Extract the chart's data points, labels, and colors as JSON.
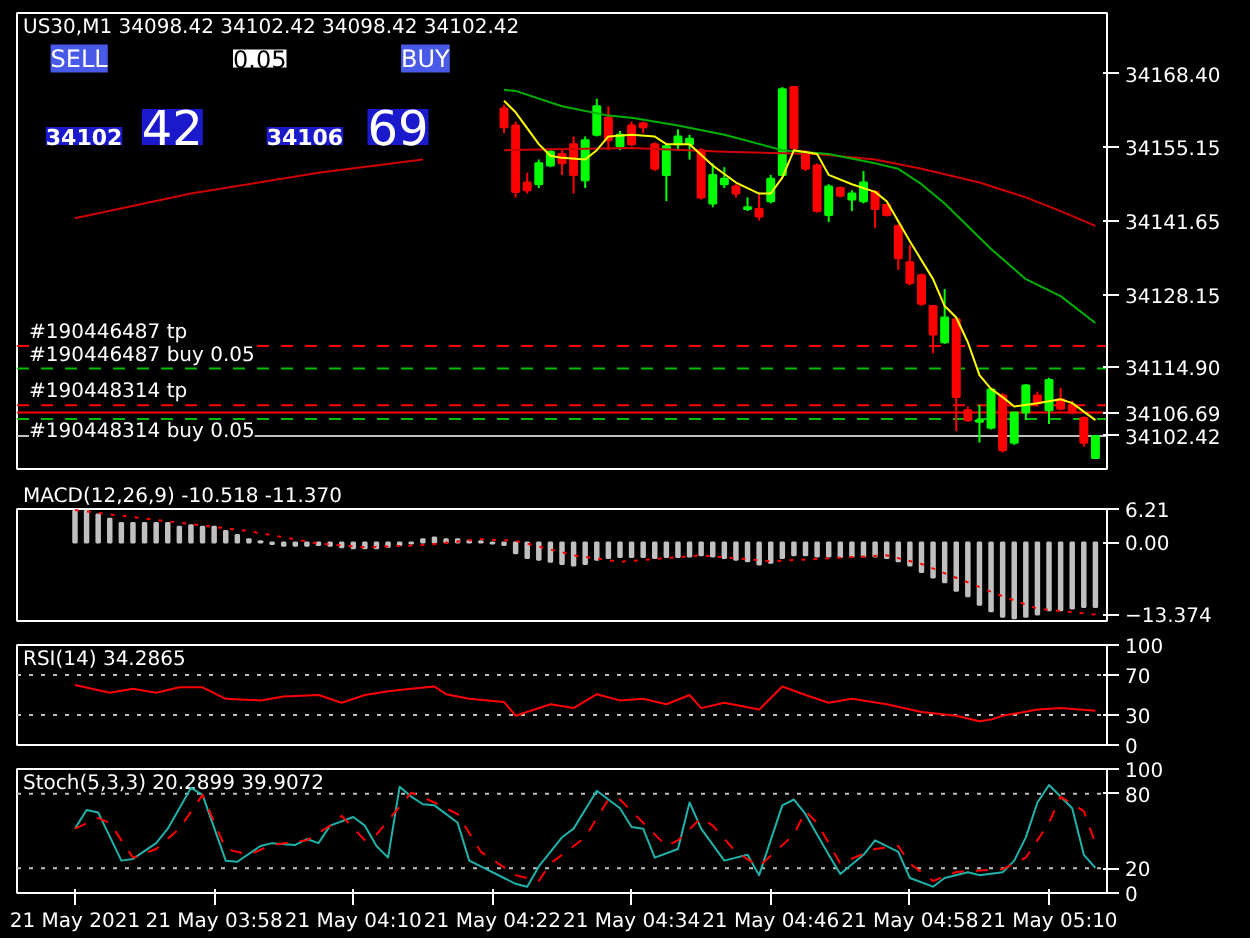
{
  "chart_data": [
    {
      "type": "candlestick",
      "title": "US30,M1 34098.42 34102.42 34098.42 34102.42",
      "tick_labels": "y",
      "xlim": [
        "2021-05-21T03:41",
        "2021-05-21T05:15"
      ],
      "ylim": [
        34096.4,
        34179.5
      ],
      "yticks": [
        {
          "value": 34168.4,
          "label": "34168.40"
        },
        {
          "value": 34155.15,
          "label": "34155.15"
        },
        {
          "value": 34141.65,
          "label": "34141.65"
        },
        {
          "value": 34128.15,
          "label": "34128.15"
        },
        {
          "value": 34114.9,
          "label": "34114.90"
        }
      ],
      "x": [
        "2021-05-21T04:23",
        "2021-05-21T04:24",
        "2021-05-21T04:25",
        "2021-05-21T04:26",
        "2021-05-21T04:27",
        "2021-05-21T04:28",
        "2021-05-21T04:29",
        "2021-05-21T04:30",
        "2021-05-21T04:31",
        "2021-05-21T04:32",
        "2021-05-21T04:33",
        "2021-05-21T04:34",
        "2021-05-21T04:35",
        "2021-05-21T04:36",
        "2021-05-21T04:37",
        "2021-05-21T04:38",
        "2021-05-21T04:39",
        "2021-05-21T04:40",
        "2021-05-21T04:41",
        "2021-05-21T04:42",
        "2021-05-21T04:43",
        "2021-05-21T04:44",
        "2021-05-21T04:45",
        "2021-05-21T04:46",
        "2021-05-21T04:47",
        "2021-05-21T04:48",
        "2021-05-21T04:49",
        "2021-05-21T04:50",
        "2021-05-21T04:51",
        "2021-05-21T04:52",
        "2021-05-21T04:53",
        "2021-05-21T04:54",
        "2021-05-21T04:55",
        "2021-05-21T04:56",
        "2021-05-21T04:57",
        "2021-05-21T04:58",
        "2021-05-21T04:59",
        "2021-05-21T05:00",
        "2021-05-21T05:01",
        "2021-05-21T05:02",
        "2021-05-21T05:03",
        "2021-05-21T05:04",
        "2021-05-21T05:05",
        "2021-05-21T05:06",
        "2021-05-21T05:07",
        "2021-05-21T05:08",
        "2021-05-21T05:09",
        "2021-05-21T05:10",
        "2021-05-21T05:11",
        "2021-05-21T05:12",
        "2021-05-21T05:13",
        "2021-05-21T05:14"
      ],
      "ohlc": [
        [
          34162.1,
          34162.8,
          34157.6,
          34158.7
        ],
        [
          34159.0,
          34159.7,
          34145.9,
          34146.9
        ],
        [
          34148.6,
          34150.4,
          34146.6,
          34147.2
        ],
        [
          34148.3,
          34152.8,
          34147.6,
          34152.1
        ],
        [
          34151.7,
          34154.5,
          34151.4,
          34154.2
        ],
        [
          34153.8,
          34154.5,
          34150.0,
          34152.1
        ],
        [
          34155.6,
          34157.0,
          34146.6,
          34150.0
        ],
        [
          34149.0,
          34157.0,
          34147.6,
          34156.3
        ],
        [
          34157.3,
          34163.9,
          34157.0,
          34162.5
        ],
        [
          34160.4,
          34162.5,
          34154.5,
          34156.3
        ],
        [
          34155.2,
          34158.0,
          34154.5,
          34157.3
        ],
        [
          34159.0,
          34159.7,
          34155.2,
          34155.6
        ],
        [
          34159.4,
          34159.7,
          34157.6,
          34158.7
        ],
        [
          34155.6,
          34155.9,
          34150.7,
          34151.1
        ],
        [
          34150.0,
          34155.6,
          34145.2,
          34155.2
        ],
        [
          34155.6,
          34158.3,
          34154.5,
          34157.0
        ],
        [
          34155.6,
          34157.3,
          34152.8,
          34156.6
        ],
        [
          34154.5,
          34154.9,
          34145.5,
          34145.9
        ],
        [
          34144.8,
          34152.1,
          34144.1,
          34150.0
        ],
        [
          34148.3,
          34151.4,
          34147.6,
          34149.3
        ],
        [
          34147.9,
          34148.3,
          34145.9,
          34146.6
        ],
        [
          34143.8,
          34145.9,
          34143.4,
          34144.1
        ],
        [
          34143.8,
          34146.6,
          34141.7,
          34142.4
        ],
        [
          34145.2,
          34150.0,
          34144.8,
          34149.3
        ],
        [
          34150.0,
          34166.0,
          34150.0,
          34165.6
        ],
        [
          34166.0,
          34166.0,
          34154.5,
          34154.9
        ],
        [
          34154.2,
          34154.5,
          34150.7,
          34151.1
        ],
        [
          34151.7,
          34152.1,
          34143.1,
          34143.4
        ],
        [
          34142.7,
          34148.3,
          34141.4,
          34147.9
        ],
        [
          34147.6,
          34147.9,
          34145.9,
          34146.2
        ],
        [
          34145.5,
          34147.2,
          34143.4,
          34146.6
        ],
        [
          34145.2,
          34150.7,
          34144.8,
          34148.6
        ],
        [
          34146.9,
          34147.2,
          34140.3,
          34143.8
        ],
        [
          34144.5,
          34144.5,
          34142.4,
          34142.7
        ],
        [
          34140.7,
          34141.0,
          34132.7,
          34134.8
        ],
        [
          34134.1,
          34137.2,
          34129.9,
          34130.3
        ],
        [
          34131.7,
          34132.0,
          34126.1,
          34126.5
        ],
        [
          34126.1,
          34126.1,
          34117.5,
          34120.9
        ],
        [
          34119.5,
          34129.2,
          34119.2,
          34124.0
        ],
        [
          34123.7,
          34124.0,
          34103.3,
          34109.5
        ],
        [
          34107.1,
          34107.8,
          34105.0,
          34105.3
        ],
        [
          34105.0,
          34108.1,
          34101.2,
          34105.3
        ],
        [
          34103.9,
          34111.2,
          34103.6,
          34110.9
        ],
        [
          34109.8,
          34110.2,
          34099.4,
          34099.8
        ],
        [
          34101.2,
          34106.7,
          34100.8,
          34106.7
        ],
        [
          34106.7,
          34111.9,
          34105.3,
          34111.6
        ],
        [
          34109.8,
          34110.5,
          34107.8,
          34108.4
        ],
        [
          34107.1,
          34113.0,
          34104.6,
          34112.6
        ],
        [
          34109.1,
          34111.2,
          34107.1,
          34107.4
        ],
        [
          34108.1,
          34108.8,
          34106.4,
          34106.7
        ],
        [
          34105.7,
          34106.0,
          34100.5,
          34101.2
        ],
        [
          34098.42,
          34102.42,
          34098.42,
          34102.42
        ]
      ],
      "colors": [
        "#ff0000",
        "#ff0000",
        "#ff0000",
        "#00ff00",
        "#00ff00",
        "#ff0000",
        "#ff0000",
        "#00ff00",
        "#00ff00",
        "#ff0000",
        "#00ff00",
        "#ff0000",
        "#ff0000",
        "#ff0000",
        "#00ff00",
        "#00ff00",
        "#00ff00",
        "#ff0000",
        "#00ff00",
        "#00ff00",
        "#ff0000",
        "#00ff00",
        "#ff0000",
        "#00ff00",
        "#00ff00",
        "#ff0000",
        "#ff0000",
        "#ff0000",
        "#00ff00",
        "#ff0000",
        "#00ff00",
        "#00ff00",
        "#ff0000",
        "#ff0000",
        "#ff0000",
        "#ff0000",
        "#ff0000",
        "#ff0000",
        "#00ff00",
        "#ff0000",
        "#ff0000",
        "#00ff00",
        "#00ff00",
        "#ff0000",
        "#00ff00",
        "#00ff00",
        "#ff0000",
        "#00ff00",
        "#ff0000",
        "#ff0000",
        "#ff0000",
        "#00ff00"
      ],
      "series": [
        {
          "type": "line",
          "color": "#d00000",
          "x": [
            "2021-05-21T03:46",
            "2021-05-21T03:56",
            "2021-05-21T04:07",
            "2021-05-21T04:16",
            "2021-05-21T04:19",
            "2021-05-21T04:23",
            "2021-05-21T04:34",
            "2021-05-21T04:42",
            "2021-05-21T04:50",
            "2021-05-21T04:55",
            "2021-05-21T04:59",
            "2021-05-21T05:04",
            "2021-05-21T05:08",
            "2021-05-21T05:11",
            "2021-05-21T05:14"
          ],
          "values": [
            34142.1,
            34146.6,
            34150.4,
            34152.8,
            null,
            34154.5,
            34154.9,
            34154.2,
            34153.8,
            34152.8,
            34151.1,
            34148.6,
            34145.9,
            34143.4,
            34140.7
          ]
        },
        {
          "type": "line",
          "color": "#00b000",
          "x": [
            "2021-05-21T04:23",
            "2021-05-21T04:24",
            "2021-05-21T04:28",
            "2021-05-21T04:32",
            "2021-05-21T04:34",
            "2021-05-21T04:38",
            "2021-05-21T04:42",
            "2021-05-21T04:47",
            "2021-05-21T04:51",
            "2021-05-21T04:55",
            "2021-05-21T04:57",
            "2021-05-21T04:59",
            "2021-05-21T05:01",
            "2021-05-21T05:05",
            "2021-05-21T05:08",
            "2021-05-21T05:11",
            "2021-05-21T05:14"
          ],
          "values": [
            34165.5,
            34165.3,
            34162.5,
            34160.8,
            34160.4,
            34159.0,
            34157.3,
            34154.5,
            34153.8,
            34152.1,
            34151.1,
            34148.3,
            34144.8,
            34136.5,
            34131.0,
            34127.9,
            34123.0
          ]
        },
        {
          "type": "line",
          "color": "#ffff00",
          "x": [
            "2021-05-21T04:23",
            "2021-05-21T04:24",
            "2021-05-21T04:26",
            "2021-05-21T04:27",
            "2021-05-21T04:28",
            "2021-05-21T04:30",
            "2021-05-21T04:31",
            "2021-05-21T04:32",
            "2021-05-21T04:34",
            "2021-05-21T04:36",
            "2021-05-21T04:37",
            "2021-05-21T04:39",
            "2021-05-21T04:41",
            "2021-05-21T04:43",
            "2021-05-21T04:45",
            "2021-05-21T04:46",
            "2021-05-21T04:47",
            "2021-05-21T04:48",
            "2021-05-21T04:50",
            "2021-05-21T04:51",
            "2021-05-21T04:53",
            "2021-05-21T04:55",
            "2021-05-21T04:56",
            "2021-05-21T04:58",
            "2021-05-21T05:00",
            "2021-05-21T05:01",
            "2021-05-21T05:02",
            "2021-05-21T05:03",
            "2021-05-21T05:04",
            "2021-05-21T05:05",
            "2021-05-21T05:06",
            "2021-05-21T05:07",
            "2021-05-21T05:09",
            "2021-05-21T05:11",
            "2021-05-21T05:12",
            "2021-05-21T05:14"
          ],
          "values": [
            34163.5,
            34161.4,
            34155.6,
            34153.5,
            34153.1,
            34152.8,
            34154.5,
            34157.0,
            34157.3,
            34157.0,
            34155.6,
            34155.6,
            34151.7,
            34148.6,
            34146.6,
            34146.6,
            34149.5,
            34154.5,
            34153.8,
            34150.0,
            34148.3,
            34146.9,
            34145.2,
            34137.9,
            34131.0,
            34126.1,
            34124.0,
            34119.5,
            34113.5,
            34111.0,
            34109.5,
            34107.8,
            34108.4,
            34109.1,
            34108.4,
            34105.3
          ]
        }
      ],
      "ref_lines": [
        {
          "axis": "y",
          "value": 34118.8,
          "label": "#190446487 tp",
          "color": "#ff0000",
          "line_style": "dashed"
        },
        {
          "axis": "y",
          "value": 34114.7,
          "label": "#190446487 buy 0.05",
          "color": "#00c000",
          "line_style": "dashed"
        },
        {
          "axis": "y",
          "value": 34108.0,
          "label": "#190448314 tp",
          "color": "#ff0000",
          "line_style": "dashed"
        },
        {
          "axis": "y",
          "value": 34105.5,
          "label": "#190448314 buy 0.05",
          "color": "#00c000",
          "line_style": "dashed"
        },
        {
          "axis": "y",
          "value": 34106.69,
          "label": "34106.69",
          "color": "#ff0000",
          "line_style": "solid"
        },
        {
          "axis": "y",
          "value": 34102.42,
          "label": "34102.42",
          "color": "#c0c0c0",
          "line_style": "solid"
        }
      ],
      "annotations": [
        "SELL",
        "0.05",
        "BUY",
        "34102",
        "42",
        "34106",
        "69"
      ]
    },
    {
      "type": "bar",
      "title": "MACD(12,26,9) -10.518 -11.370",
      "tick_labels": "y",
      "color": "#c0c0c0",
      "xlim": [
        "2021-05-21T03:41",
        "2021-05-21T05:15"
      ],
      "ylim": [
        -14.6,
        6.21
      ],
      "yticks": [
        6.21,
        {
          "value": 0,
          "label": "0.00"
        },
        -13.374
      ],
      "x": [
        "2021-05-21T03:46",
        "2021-05-21T03:47",
        "2021-05-21T03:48",
        "2021-05-21T03:49",
        "2021-05-21T03:50",
        "2021-05-21T03:51",
        "2021-05-21T03:52",
        "2021-05-21T03:53",
        "2021-05-21T03:54",
        "2021-05-21T03:55",
        "2021-05-21T03:56",
        "2021-05-21T03:57",
        "2021-05-21T03:58",
        "2021-05-21T03:59",
        "2021-05-21T04:00",
        "2021-05-21T04:01",
        "2021-05-21T04:02",
        "2021-05-21T04:03",
        "2021-05-21T04:04",
        "2021-05-21T04:05",
        "2021-05-21T04:06",
        "2021-05-21T04:07",
        "2021-05-21T04:08",
        "2021-05-21T04:09",
        "2021-05-21T04:10",
        "2021-05-21T04:11",
        "2021-05-21T04:12",
        "2021-05-21T04:13",
        "2021-05-21T04:14",
        "2021-05-21T04:15",
        "2021-05-21T04:16",
        "2021-05-21T04:17",
        "2021-05-21T04:18",
        "2021-05-21T04:19",
        "2021-05-21T04:20",
        "2021-05-21T04:21",
        "2021-05-21T04:22",
        "2021-05-21T04:23",
        "2021-05-21T04:24",
        "2021-05-21T04:25",
        "2021-05-21T04:26",
        "2021-05-21T04:27",
        "2021-05-21T04:28",
        "2021-05-21T04:29",
        "2021-05-21T04:30",
        "2021-05-21T04:31",
        "2021-05-21T04:32",
        "2021-05-21T04:33",
        "2021-05-21T04:34",
        "2021-05-21T04:35",
        "2021-05-21T04:36",
        "2021-05-21T04:37",
        "2021-05-21T04:38",
        "2021-05-21T04:39",
        "2021-05-21T04:40",
        "2021-05-21T04:41",
        "2021-05-21T04:42",
        "2021-05-21T04:43",
        "2021-05-21T04:44",
        "2021-05-21T04:45",
        "2021-05-21T04:46",
        "2021-05-21T04:47",
        "2021-05-21T04:48",
        "2021-05-21T04:49",
        "2021-05-21T04:50",
        "2021-05-21T04:51",
        "2021-05-21T04:52",
        "2021-05-21T04:53",
        "2021-05-21T04:54",
        "2021-05-21T04:55",
        "2021-05-21T04:56",
        "2021-05-21T04:57",
        "2021-05-21T04:58",
        "2021-05-21T04:59",
        "2021-05-21T05:00",
        "2021-05-21T05:01",
        "2021-05-21T05:02",
        "2021-05-21T05:03",
        "2021-05-21T05:04",
        "2021-05-21T05:05",
        "2021-05-21T05:06",
        "2021-05-21T05:07",
        "2021-05-21T05:08",
        "2021-05-21T05:09",
        "2021-05-21T05:10",
        "2021-05-21T05:11",
        "2021-05-21T05:12",
        "2021-05-21T05:13",
        "2021-05-21T05:14"
      ],
      "values": [
        5.9,
        5.9,
        5.2,
        4.4,
        3.6,
        3.6,
        3.6,
        3.6,
        3.6,
        2.9,
        3.2,
        2.9,
        2.9,
        2.1,
        1.4,
        0.6,
        0.2,
        -0.3,
        -0.6,
        -0.6,
        -0.6,
        -0.5,
        -0.6,
        -0.9,
        -1.1,
        -1.1,
        -1.1,
        -0.8,
        -0.5,
        -0.2,
        0.6,
        0.9,
        0.6,
        0.6,
        0.3,
        0.2,
        -0.2,
        -0.5,
        -2.0,
        -2.9,
        -3.2,
        -3.6,
        -4.0,
        -4.3,
        -4.0,
        -3.2,
        -2.9,
        -2.7,
        -2.7,
        -2.7,
        -2.9,
        -2.7,
        -2.7,
        -2.6,
        -2.4,
        -2.6,
        -2.9,
        -3.2,
        -3.5,
        -4.1,
        -3.8,
        -2.9,
        -2.4,
        -2.4,
        -2.6,
        -2.6,
        -2.7,
        -2.6,
        -2.6,
        -2.6,
        -2.9,
        -3.5,
        -4.3,
        -5.5,
        -6.5,
        -7.4,
        -9.0,
        -10.0,
        -11.6,
        -12.8,
        -13.8,
        -14.1,
        -13.8,
        -13.4,
        -12.6,
        -12.6,
        -12.3,
        -12.0,
        -12.0
      ],
      "series": [
        {
          "type": "line",
          "color": "#ff0000",
          "line_style": "dotted",
          "x": [
            "2021-05-21T03:46",
            "2021-05-21T04:01",
            "2021-05-21T04:07",
            "2021-05-21T04:11",
            "2021-05-21T04:16",
            "2021-05-21T04:21",
            "2021-05-21T04:24",
            "2021-05-21T04:29",
            "2021-05-21T04:33",
            "2021-05-21T04:40",
            "2021-05-21T04:46",
            "2021-05-21T04:56",
            "2021-05-21T04:59",
            "2021-05-21T05:06",
            "2021-05-21T05:09",
            "2021-05-21T05:14"
          ],
          "values": [
            6.0,
            2.1,
            -0.2,
            -0.9,
            -0.5,
            0.6,
            0.3,
            -2.4,
            -3.6,
            -2.4,
            -3.5,
            -2.4,
            -4.0,
            -10.0,
            -12.3,
            -13.4
          ]
        }
      ]
    },
    {
      "type": "line",
      "title": "RSI(14) 34.2865",
      "tick_labels": "y",
      "xlim": [
        "2021-05-21T03:41",
        "2021-05-21T05:15"
      ],
      "ylim": [
        0,
        100
      ],
      "yticks": [
        100,
        70,
        30,
        0
      ],
      "series": [
        {
          "color": "#ff0000",
          "x": [
            "2021-05-21T03:46",
            "2021-05-21T03:49",
            "2021-05-21T03:51",
            "2021-05-21T03:53",
            "2021-05-21T03:55",
            "2021-05-21T03:57",
            "2021-05-21T03:59",
            "2021-05-21T04:02",
            "2021-05-21T04:04",
            "2021-05-21T04:07",
            "2021-05-21T04:09",
            "2021-05-21T04:11",
            "2021-05-21T04:13",
            "2021-05-21T04:15",
            "2021-05-21T04:17",
            "2021-05-21T04:18",
            "2021-05-21T04:20",
            "2021-05-21T04:23",
            "2021-05-21T04:24",
            "2021-05-21T04:27",
            "2021-05-21T04:29",
            "2021-05-21T04:31",
            "2021-05-21T04:33",
            "2021-05-21T04:35",
            "2021-05-21T04:37",
            "2021-05-21T04:39",
            "2021-05-21T04:40",
            "2021-05-21T04:42",
            "2021-05-21T04:45",
            "2021-05-21T04:47",
            "2021-05-21T04:49",
            "2021-05-21T04:51",
            "2021-05-21T04:53",
            "2021-05-21T04:56",
            "2021-05-21T04:59",
            "2021-05-21T05:02",
            "2021-05-21T05:04",
            "2021-05-21T05:05",
            "2021-05-21T05:06",
            "2021-05-21T05:09",
            "2021-05-21T05:11",
            "2021-05-21T05:14"
          ],
          "values": [
            60,
            52.3,
            56.2,
            52.3,
            57.7,
            57.7,
            46.2,
            44.6,
            48.5,
            50.0,
            42.3,
            50.0,
            53.8,
            56.2,
            58.5,
            50.8,
            46.2,
            43.1,
            29.2,
            40.8,
            36.9,
            50.8,
            44.6,
            46.2,
            40.8,
            50.0,
            36.9,
            42.3,
            35.4,
            58.5,
            50.0,
            42.3,
            46.2,
            40.8,
            33.1,
            29.2,
            23.8,
            25.4,
            29.2,
            35.4,
            36.9,
            34.3
          ]
        }
      ],
      "ref_lines": [
        {
          "axis": "y",
          "value": 70,
          "color": "#c0c0c0",
          "line_style": "dotted"
        },
        {
          "axis": "y",
          "value": 30,
          "color": "#c0c0c0",
          "line_style": "dotted"
        }
      ]
    },
    {
      "type": "line",
      "title": "Stoch(5,3,3) 20.2899 39.9072",
      "xlim": [
        "2021-05-21T03:41",
        "2021-05-21T05:15"
      ],
      "ylim": [
        0,
        100
      ],
      "yticks": [
        100,
        80,
        20,
        0
      ],
      "xticks": [
        {
          "value": "2021-05-21T03:46",
          "label": "21 May 2021"
        },
        {
          "value": "2021-05-21T03:58",
          "label": "21 May 03:58"
        },
        {
          "value": "2021-05-21T04:10",
          "label": "21 May 04:10"
        },
        {
          "value": "2021-05-21T04:22",
          "label": "21 May 04:22"
        },
        {
          "value": "2021-05-21T04:34",
          "label": "21 May 04:34"
        },
        {
          "value": "2021-05-21T04:46",
          "label": "21 May 04:46"
        },
        {
          "value": "2021-05-21T04:58",
          "label": "21 May 04:58"
        },
        {
          "value": "2021-05-21T05:10",
          "label": "21 May 05:10"
        }
      ],
      "series": [
        {
          "color": "#20b2aa",
          "x": [
            "2021-05-21T03:46",
            "2021-05-21T03:47",
            "2021-05-21T03:48",
            "2021-05-21T03:50",
            "2021-05-21T03:51",
            "2021-05-21T03:53",
            "2021-05-21T03:54",
            "2021-05-21T03:56",
            "2021-05-21T03:57",
            "2021-05-21T03:59",
            "2021-05-21T04:00",
            "2021-05-21T04:02",
            "2021-05-21T04:03",
            "2021-05-21T04:05",
            "2021-05-21T04:06",
            "2021-05-21T04:07",
            "2021-05-21T04:08",
            "2021-05-21T04:10",
            "2021-05-21T04:11",
            "2021-05-21T04:12",
            "2021-05-21T04:13",
            "2021-05-21T04:14",
            "2021-05-21T04:15",
            "2021-05-21T04:16",
            "2021-05-21T04:17",
            "2021-05-21T04:19",
            "2021-05-21T04:20",
            "2021-05-21T04:21",
            "2021-05-21T04:23",
            "2021-05-21T04:24",
            "2021-05-21T04:25",
            "2021-05-21T04:26",
            "2021-05-21T04:28",
            "2021-05-21T04:29",
            "2021-05-21T04:31",
            "2021-05-21T04:33",
            "2021-05-21T04:34",
            "2021-05-21T04:35",
            "2021-05-21T04:36",
            "2021-05-21T04:38",
            "2021-05-21T04:39",
            "2021-05-21T04:40",
            "2021-05-21T04:42",
            "2021-05-21T04:44",
            "2021-05-21T04:45",
            "2021-05-21T04:47",
            "2021-05-21T04:48",
            "2021-05-21T04:49",
            "2021-05-21T04:51",
            "2021-05-21T04:52",
            "2021-05-21T04:54",
            "2021-05-21T04:55",
            "2021-05-21T04:57",
            "2021-05-21T04:58",
            "2021-05-21T05:00",
            "2021-05-21T05:01",
            "2021-05-21T05:03",
            "2021-05-21T05:04",
            "2021-05-21T05:06",
            "2021-05-21T05:07",
            "2021-05-21T05:08",
            "2021-05-21T05:09",
            "2021-05-21T05:10",
            "2021-05-21T05:12",
            "2021-05-21T05:13",
            "2021-05-21T05:14"
          ],
          "values": [
            51.9,
            66.9,
            65.0,
            26.1,
            27.5,
            40.2,
            51.9,
            84.7,
            79.1,
            26.1,
            25.2,
            37.9,
            40.2,
            38.8,
            43.5,
            40.2,
            54.3,
            61.3,
            54.3,
            37.9,
            28.5,
            85.7,
            77.7,
            71.6,
            70.7,
            56.6,
            26.1,
            21.4,
            12.1,
            7.4,
            5.1,
            21.4,
            44.9,
            51.9,
            82.4,
            68.3,
            53.3,
            51.9,
            28.5,
            35.5,
            73.0,
            51.9,
            26.1,
            30.8,
            14.4,
            70.7,
            75.4,
            63.6,
            30.8,
            15.3,
            30.8,
            42.5,
            33.2,
            12.1,
            5.1,
            12.1,
            16.8,
            14.4,
            16.8,
            26.1,
            44.9,
            73.0,
            87.1,
            68.3,
            30.8,
            20.3
          ]
        },
        {
          "color": "#ff0000",
          "line_style": "dashed",
          "x": [
            "2021-05-21T03:46",
            "2021-05-21T03:48",
            "2021-05-21T03:49",
            "2021-05-21T03:51",
            "2021-05-21T03:53",
            "2021-05-21T03:55",
            "2021-05-21T03:57",
            "2021-05-21T03:59",
            "2021-05-21T04:01",
            "2021-05-21T04:03",
            "2021-05-21T04:06",
            "2021-05-21T04:08",
            "2021-05-21T04:09",
            "2021-05-21T04:11",
            "2021-05-21T04:12",
            "2021-05-21T04:15",
            "2021-05-21T04:17",
            "2021-05-21T04:19",
            "2021-05-21T04:21",
            "2021-05-21T04:24",
            "2021-05-21T04:26",
            "2021-05-21T04:27",
            "2021-05-21T04:30",
            "2021-05-21T04:32",
            "2021-05-21T04:33",
            "2021-05-21T04:35",
            "2021-05-21T04:37",
            "2021-05-21T04:38",
            "2021-05-21T04:40",
            "2021-05-21T04:41",
            "2021-05-21T04:43",
            "2021-05-21T04:45",
            "2021-05-21T04:48",
            "2021-05-21T04:49",
            "2021-05-21T04:50",
            "2021-05-21T04:52",
            "2021-05-21T04:55",
            "2021-05-21T04:57",
            "2021-05-21T04:58",
            "2021-05-21T05:00",
            "2021-05-21T05:02",
            "2021-05-21T05:06",
            "2021-05-21T05:08",
            "2021-05-21T05:10",
            "2021-05-21T05:11",
            "2021-05-21T05:13",
            "2021-05-21T05:14"
          ],
          "values": [
            51.9,
            60.4,
            56.6,
            28.5,
            35.5,
            51.9,
            79.1,
            35.5,
            30.8,
            38.8,
            42.5,
            54.3,
            62.2,
            42.5,
            47.2,
            81.0,
            73.0,
            63.6,
            33.2,
            14.4,
            9.7,
            23.8,
            44.9,
            75.4,
            75.4,
            56.6,
            37.9,
            42.5,
            60.4,
            54.3,
            33.2,
            21.4,
            47.2,
            66.0,
            56.6,
            23.8,
            35.5,
            37.9,
            23.8,
            9.7,
            16.9,
            19.2,
            28.5,
            56.6,
            77.7,
            66.0,
            39.9
          ]
        }
      ],
      "ref_lines": [
        {
          "axis": "y",
          "value": 80,
          "color": "#c0c0c0",
          "line_style": "dotted"
        },
        {
          "axis": "y",
          "value": 20,
          "color": "#c0c0c0",
          "line_style": "dotted"
        }
      ]
    }
  ]
}
